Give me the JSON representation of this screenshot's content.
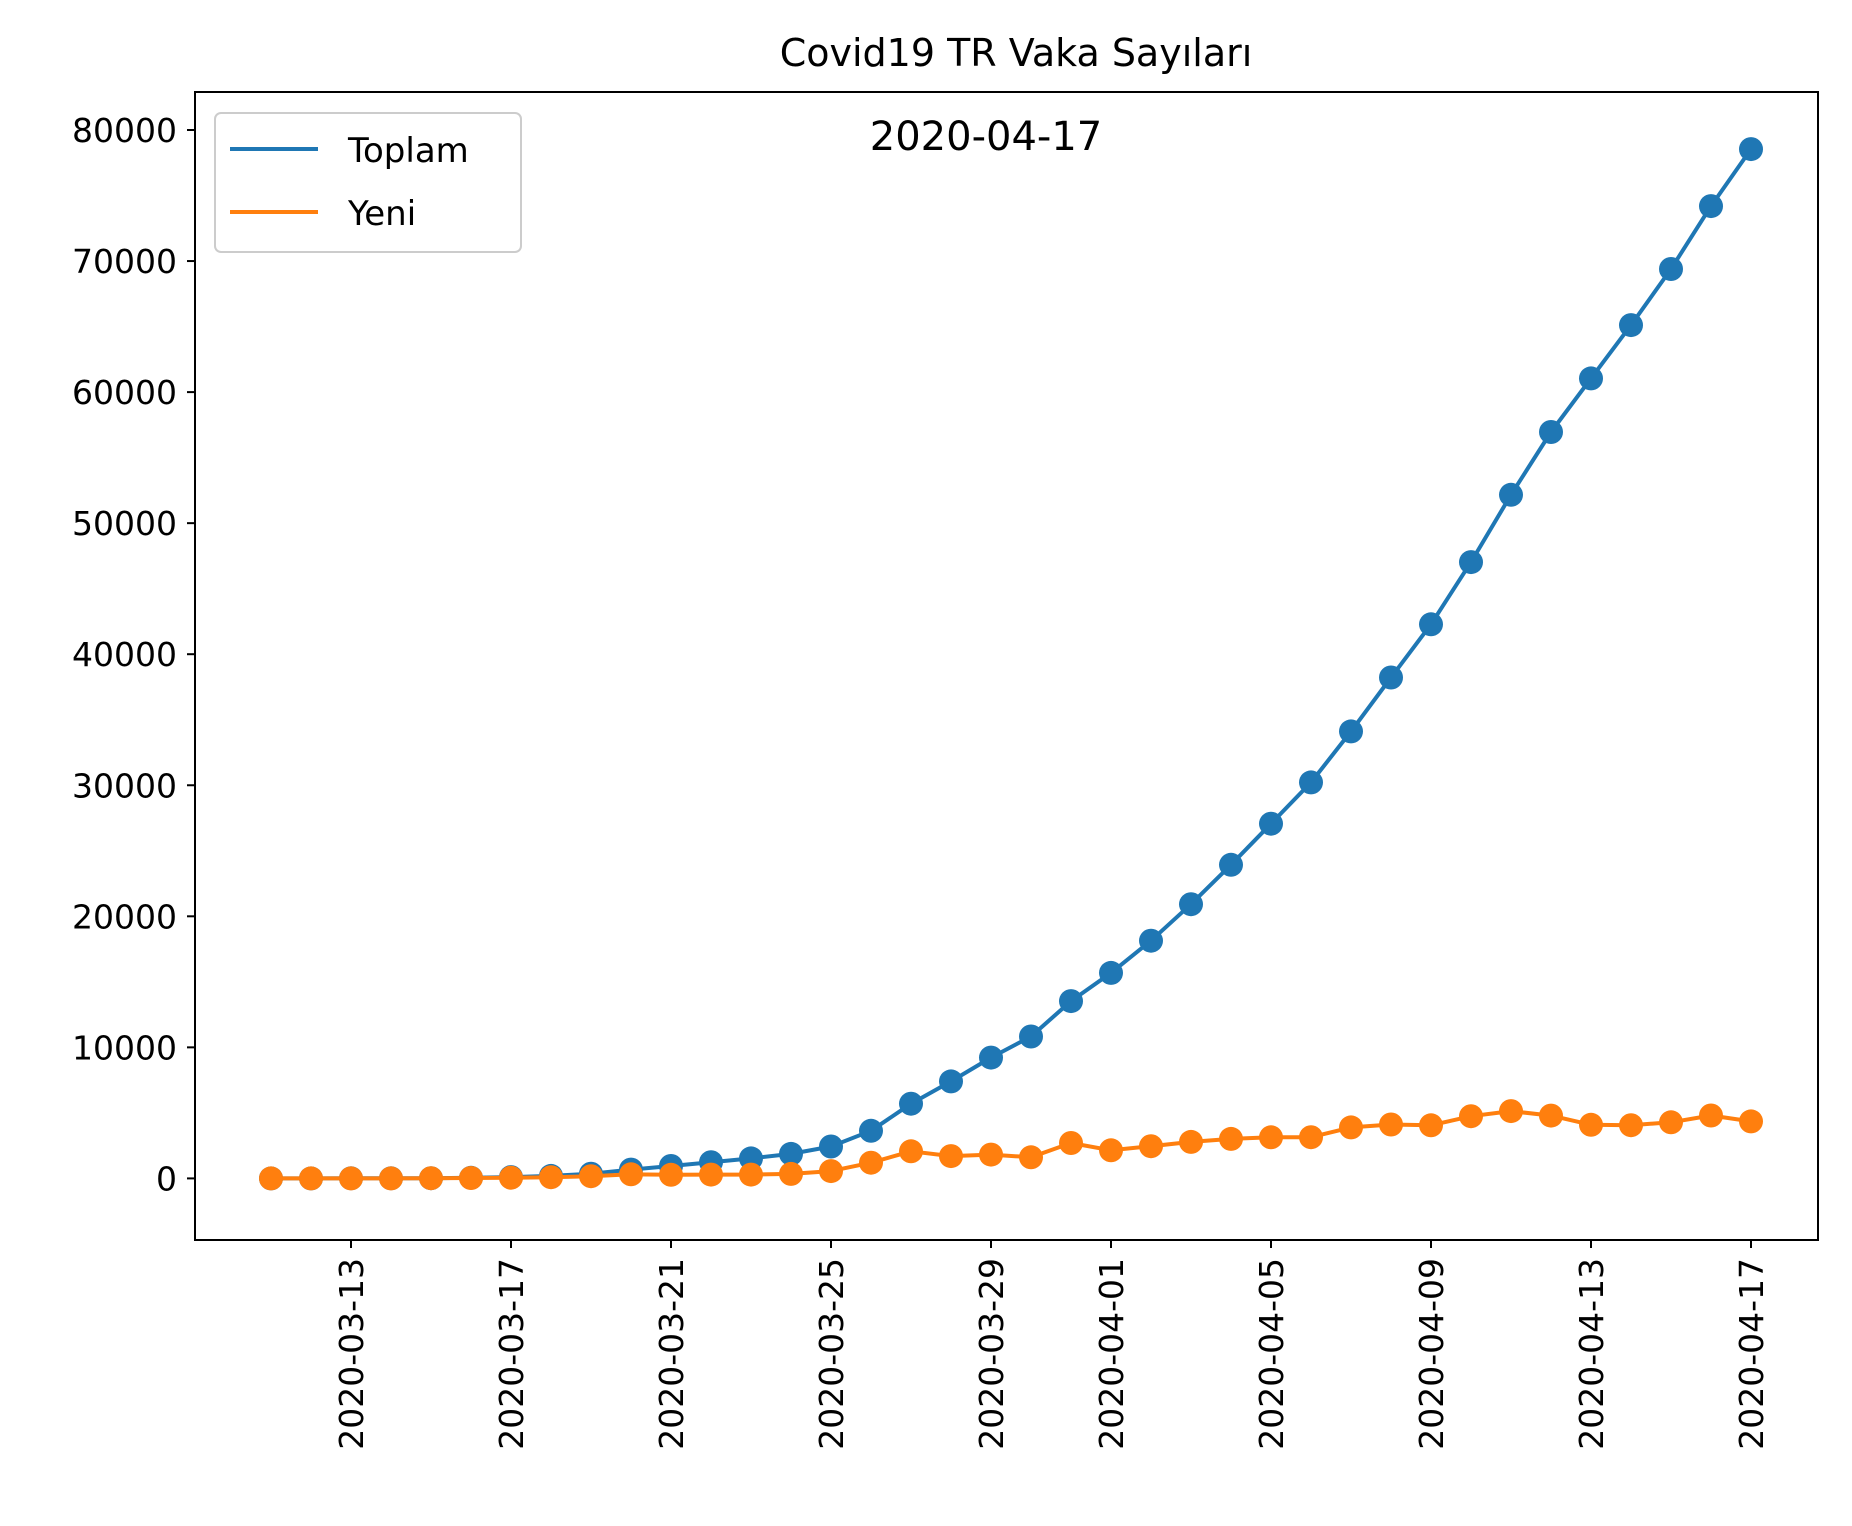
{
  "chart_data": {
    "type": "line",
    "title": "Covid19 TR Vaka Sayıları",
    "annotation": "2020-04-17",
    "xlabel": "",
    "ylabel": "",
    "x": [
      "2020-03-11",
      "2020-03-12",
      "2020-03-13",
      "2020-03-14",
      "2020-03-15",
      "2020-03-16",
      "2020-03-17",
      "2020-03-18",
      "2020-03-19",
      "2020-03-20",
      "2020-03-21",
      "2020-03-22",
      "2020-03-23",
      "2020-03-24",
      "2020-03-25",
      "2020-03-26",
      "2020-03-27",
      "2020-03-28",
      "2020-03-29",
      "2020-03-30",
      "2020-03-31",
      "2020-04-01",
      "2020-04-02",
      "2020-04-03",
      "2020-04-04",
      "2020-04-05",
      "2020-04-06",
      "2020-04-07",
      "2020-04-08",
      "2020-04-09",
      "2020-04-10",
      "2020-04-11",
      "2020-04-12",
      "2020-04-13",
      "2020-04-14",
      "2020-04-15",
      "2020-04-16",
      "2020-04-17"
    ],
    "xticks": [
      "2020-03-13",
      "2020-03-17",
      "2020-03-21",
      "2020-03-25",
      "2020-03-29",
      "2020-04-01",
      "2020-04-05",
      "2020-04-09",
      "2020-04-13",
      "2020-04-17"
    ],
    "yticks": [
      0,
      10000,
      20000,
      30000,
      40000,
      50000,
      60000,
      70000,
      80000
    ],
    "ylim": [
      -4700,
      82900
    ],
    "grid": false,
    "legend_position": "top-left",
    "series": [
      {
        "name": "Toplam",
        "color": "#1f77b4",
        "marker": "circle",
        "values": [
          1,
          1,
          5,
          6,
          18,
          47,
          98,
          191,
          359,
          670,
          947,
          1236,
          1529,
          1872,
          2433,
          3629,
          5698,
          7402,
          9217,
          10827,
          13531,
          15679,
          18135,
          20921,
          23934,
          27069,
          30217,
          34109,
          38226,
          42282,
          47029,
          52167,
          56956,
          61049,
          65111,
          69392,
          74193,
          78546
        ]
      },
      {
        "name": "Yeni",
        "color": "#ff7f0e",
        "marker": "circle",
        "values": [
          1,
          0,
          4,
          1,
          12,
          29,
          51,
          93,
          168,
          311,
          277,
          289,
          293,
          343,
          561,
          1196,
          2069,
          1704,
          1815,
          1610,
          2704,
          2148,
          2456,
          2786,
          3013,
          3135,
          3148,
          3892,
          4117,
          4056,
          4747,
          5138,
          4789,
          4093,
          4062,
          4281,
          4801,
          4353
        ]
      }
    ]
  }
}
